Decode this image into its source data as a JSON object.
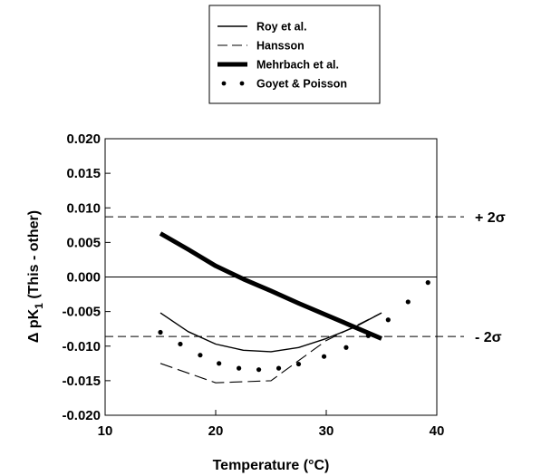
{
  "chart_data": {
    "type": "line",
    "xlabel": "Temperature (°C)",
    "ylabel": {
      "prefix": "Δ pK",
      "subscript": "1",
      "suffix": " (This - other)"
    },
    "xlim": [
      10,
      40
    ],
    "ylim": [
      -0.02,
      0.02
    ],
    "xticks": [
      "10",
      "20",
      "30",
      "40"
    ],
    "yticks": [
      "0.020",
      "0.015",
      "0.010",
      "0.005",
      "0.000",
      "-0.005",
      "-0.010",
      "-0.015",
      "-0.020"
    ],
    "grid": false,
    "legend_placement": "top-center",
    "reference_lines": [
      {
        "y": 0.0,
        "style": "solid",
        "label": ""
      },
      {
        "y": 0.0087,
        "style": "dashed",
        "label": "+ 2σ"
      },
      {
        "y": -0.0086,
        "style": "dashed",
        "label": "- 2σ"
      }
    ],
    "series": [
      {
        "name": "Roy et al.",
        "style": "solid-thin",
        "x": [
          15,
          17.5,
          20,
          22.5,
          25,
          27.5,
          30,
          32.5,
          35
        ],
        "y": [
          -0.0052,
          -0.0079,
          -0.0097,
          -0.0106,
          -0.0108,
          -0.0102,
          -0.0089,
          -0.0073,
          -0.0052
        ]
      },
      {
        "name": "Hansson",
        "style": "dashed",
        "x": [
          15,
          20,
          25,
          30,
          35
        ],
        "y": [
          -0.0125,
          -0.0153,
          -0.015,
          -0.0092,
          -0.0052
        ]
      },
      {
        "name": "Mehrbach et al.",
        "style": "solid-thick",
        "x": [
          15,
          17.5,
          20,
          22.5,
          25,
          27.5,
          30,
          32.5,
          35
        ],
        "y": [
          0.0063,
          0.004,
          0.0016,
          -0.0003,
          -0.002,
          -0.0038,
          -0.0055,
          -0.0072,
          -0.0089
        ]
      },
      {
        "name": "Goyet & Poisson",
        "style": "dots",
        "x": [
          15,
          16.8,
          18.6,
          20.3,
          22.1,
          23.9,
          25.7,
          27.5,
          29.8,
          31.8,
          33.8,
          35.6,
          37.4,
          39.2
        ],
        "y": [
          -0.008,
          -0.0097,
          -0.0113,
          -0.0125,
          -0.0132,
          -0.0134,
          -0.0132,
          -0.0126,
          -0.0115,
          -0.0102,
          -0.0085,
          -0.0062,
          -0.0036,
          -0.0008
        ]
      }
    ]
  }
}
